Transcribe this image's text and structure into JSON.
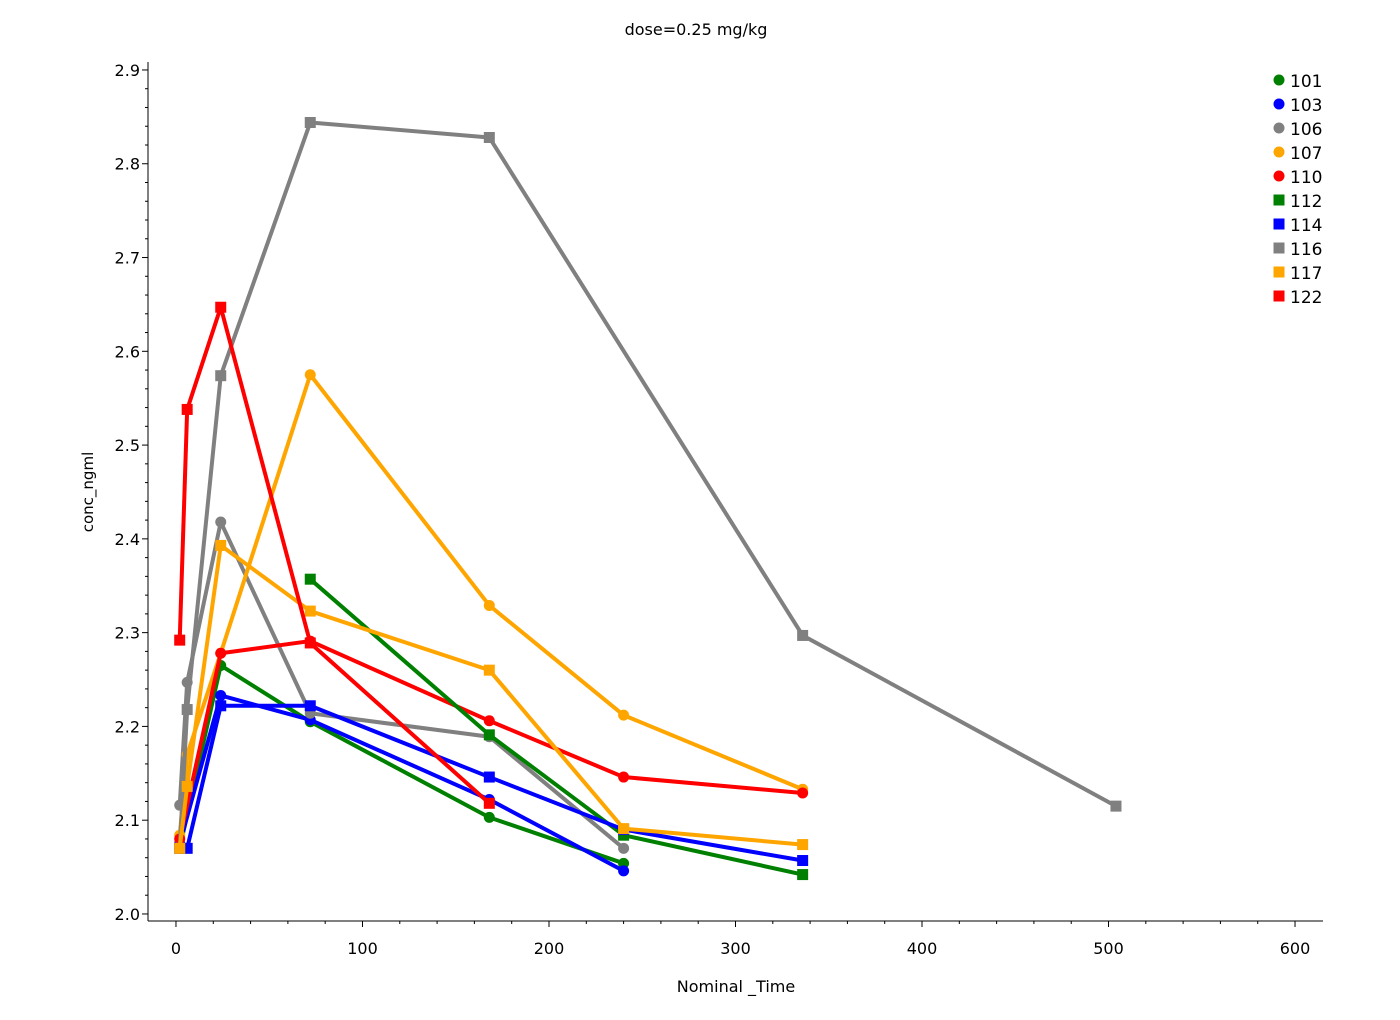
{
  "chart_data": {
    "type": "line",
    "title": "dose=0.25 mg/kg",
    "xlabel": "Nominal _Time",
    "ylabel": "conc_ngml",
    "xlim": [
      -15,
      615
    ],
    "ylim": [
      1.9925,
      2.9085
    ],
    "xticks": [
      0,
      100,
      200,
      300,
      400,
      500,
      600
    ],
    "yticks": [
      2.0,
      2.1,
      2.2,
      2.3,
      2.4,
      2.5,
      2.6,
      2.7,
      2.8,
      2.9
    ],
    "grid": false,
    "legend_position": "top-right",
    "series": [
      {
        "name": "101",
        "marker": "circle",
        "color": "#008000",
        "x": [
          2,
          24,
          72,
          168,
          240
        ],
        "y": [
          2.07,
          2.265,
          2.205,
          2.103,
          2.054
        ]
      },
      {
        "name": "103",
        "marker": "circle",
        "color": "#0000ff",
        "x": [
          2,
          24,
          72,
          168,
          240
        ],
        "y": [
          2.075,
          2.233,
          2.207,
          2.122,
          2.046
        ]
      },
      {
        "name": "106",
        "marker": "circle",
        "color": "#808080",
        "x": [
          2,
          6,
          24,
          72,
          168,
          240
        ],
        "y": [
          2.116,
          2.247,
          2.418,
          2.214,
          2.189,
          2.07
        ]
      },
      {
        "name": "107",
        "marker": "circle",
        "color": "#ffa500",
        "x": [
          2,
          6,
          24,
          72,
          168,
          240,
          336
        ],
        "y": [
          2.084,
          2.17,
          2.278,
          2.575,
          2.329,
          2.212,
          2.133
        ]
      },
      {
        "name": "110",
        "marker": "circle",
        "color": "#ff0000",
        "x": [
          2,
          24,
          72,
          168,
          240,
          336
        ],
        "y": [
          2.08,
          2.278,
          2.291,
          2.206,
          2.146,
          2.129
        ]
      },
      {
        "name": "112",
        "marker": "square",
        "color": "#008000",
        "x": [
          72,
          168,
          240,
          336
        ],
        "y": [
          2.357,
          2.191,
          2.084,
          2.042
        ]
      },
      {
        "name": "114",
        "marker": "square",
        "color": "#0000ff",
        "x": [
          2,
          6,
          24,
          72,
          168,
          240,
          336
        ],
        "y": [
          2.07,
          2.07,
          2.222,
          2.222,
          2.146,
          2.09,
          2.057
        ]
      },
      {
        "name": "116",
        "marker": "square",
        "color": "#808080",
        "x": [
          2,
          6,
          24,
          72,
          168,
          336,
          504
        ],
        "y": [
          2.07,
          2.218,
          2.574,
          2.844,
          2.828,
          2.297,
          2.115
        ]
      },
      {
        "name": "117",
        "marker": "square",
        "color": "#ffa500",
        "x": [
          2,
          6,
          24,
          72,
          168,
          240,
          336
        ],
        "y": [
          2.07,
          2.136,
          2.393,
          2.323,
          2.26,
          2.091,
          2.074
        ]
      },
      {
        "name": "122",
        "marker": "square",
        "color": "#ff0000",
        "x": [
          2,
          6,
          24,
          72,
          168
        ],
        "y": [
          2.292,
          2.538,
          2.647,
          2.289,
          2.118
        ]
      }
    ]
  }
}
